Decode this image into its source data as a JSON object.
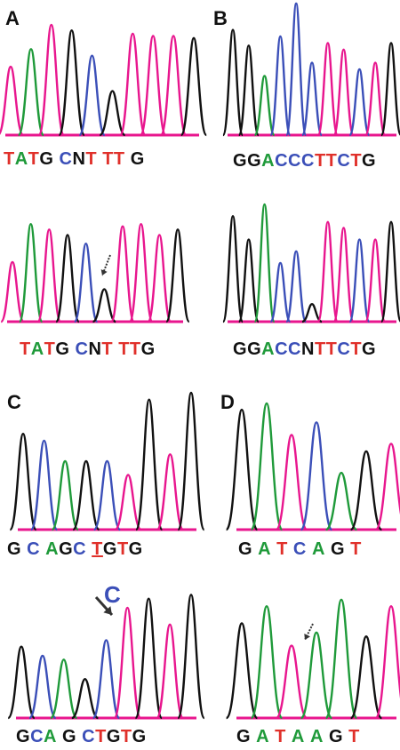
{
  "colors": {
    "A": "#1f9a3a",
    "C": "#3b4fb8",
    "G": "#111111",
    "T": "#e0302a",
    "trace_T": "#e8168e",
    "baseline": "#e8168e",
    "arrow": "#333333"
  },
  "panels": [
    {
      "letter": "A",
      "tracks": [
        {
          "id": "A1",
          "peaks": "TATGCNTTTG",
          "seq": [
            [
              "T",
              "T"
            ],
            [
              "A",
              "A"
            ],
            [
              "T",
              "T"
            ],
            [
              "G",
              "G"
            ],
            [
              " ",
              ""
            ],
            [
              "C",
              "C"
            ],
            [
              "N",
              "N"
            ],
            [
              "T",
              "T"
            ],
            [
              " ",
              ""
            ],
            [
              "T",
              "T"
            ],
            [
              "T",
              "T"
            ],
            [
              " ",
              ""
            ],
            [
              "G",
              "G"
            ]
          ]
        },
        {
          "id": "A2",
          "peaks": "TATGCNTTTG",
          "seq": [
            [
              "T",
              "T"
            ],
            [
              "A",
              "A"
            ],
            [
              "T",
              "T"
            ],
            [
              "G",
              "G"
            ],
            [
              " ",
              ""
            ],
            [
              "C",
              "C"
            ],
            [
              "N",
              "N"
            ],
            [
              "T",
              "T"
            ],
            [
              " ",
              ""
            ],
            [
              "T",
              "T"
            ],
            [
              "T",
              "T"
            ],
            [
              "G",
              "G"
            ]
          ]
        }
      ]
    },
    {
      "letter": "B",
      "tracks": [
        {
          "id": "B1",
          "peaks": "GGACCCTTCTG",
          "seq": [
            [
              "G",
              "G"
            ],
            [
              "G",
              "G"
            ],
            [
              "A",
              "A"
            ],
            [
              "C",
              "C"
            ],
            [
              "C",
              "C"
            ],
            [
              "C",
              "C"
            ],
            [
              "T",
              "T"
            ],
            [
              "T",
              "T"
            ],
            [
              "C",
              "C"
            ],
            [
              "T",
              "T"
            ],
            [
              "G",
              "G"
            ]
          ]
        },
        {
          "id": "B2",
          "peaks": "GGACCNTTCTG",
          "seq": [
            [
              "G",
              "G"
            ],
            [
              "G",
              "G"
            ],
            [
              "A",
              "A"
            ],
            [
              "C",
              "C"
            ],
            [
              "C",
              "C"
            ],
            [
              "N",
              "N"
            ],
            [
              "T",
              "T"
            ],
            [
              "T",
              "T"
            ],
            [
              "C",
              "C"
            ],
            [
              "T",
              "T"
            ],
            [
              "G",
              "G"
            ]
          ]
        }
      ]
    },
    {
      "letter": "C",
      "tracks": [
        {
          "id": "C1",
          "peaks": "GCAGCTGTG",
          "seq": [
            [
              "G",
              "G"
            ],
            [
              " ",
              ""
            ],
            [
              "C",
              "C"
            ],
            [
              " ",
              ""
            ],
            [
              "A",
              "A"
            ],
            [
              "G",
              "G"
            ],
            [
              "C",
              "C"
            ],
            [
              " ",
              ""
            ],
            [
              "T",
              "u"
            ],
            [
              "G",
              "G"
            ],
            [
              "T",
              "T"
            ],
            [
              "G",
              "G"
            ]
          ]
        },
        {
          "id": "C2",
          "peaks": "GCAGCTGTG",
          "extra": "C",
          "seq": [
            [
              "G",
              "G"
            ],
            [
              "C",
              "C"
            ],
            [
              "A",
              "A"
            ],
            [
              " ",
              ""
            ],
            [
              "G",
              "G"
            ],
            [
              " ",
              ""
            ],
            [
              "C",
              "C"
            ],
            [
              "T",
              "T"
            ],
            [
              "G",
              "G"
            ],
            [
              "T",
              "T"
            ],
            [
              "G",
              "G"
            ]
          ]
        }
      ]
    },
    {
      "letter": "D",
      "tracks": [
        {
          "id": "D1",
          "peaks": "GATCAGT",
          "seq": [
            [
              "G",
              "G"
            ],
            [
              " ",
              ""
            ],
            [
              "A",
              "A"
            ],
            [
              " ",
              ""
            ],
            [
              "T",
              "T"
            ],
            [
              " ",
              ""
            ],
            [
              "C",
              "C"
            ],
            [
              " ",
              ""
            ],
            [
              "A",
              "A"
            ],
            [
              " ",
              ""
            ],
            [
              "G",
              "G"
            ],
            [
              " ",
              ""
            ],
            [
              "T",
              "T"
            ]
          ]
        },
        {
          "id": "D2",
          "peaks": "GATAAGT",
          "seq": [
            [
              "G",
              "G"
            ],
            [
              " ",
              ""
            ],
            [
              "A",
              "A"
            ],
            [
              " ",
              ""
            ],
            [
              "T",
              "T"
            ],
            [
              " ",
              ""
            ],
            [
              "A",
              "A"
            ],
            [
              " ",
              ""
            ],
            [
              "A",
              "A"
            ],
            [
              " ",
              ""
            ],
            [
              "G",
              "G"
            ],
            [
              " ",
              ""
            ],
            [
              "T",
              "T"
            ]
          ]
        }
      ]
    }
  ]
}
